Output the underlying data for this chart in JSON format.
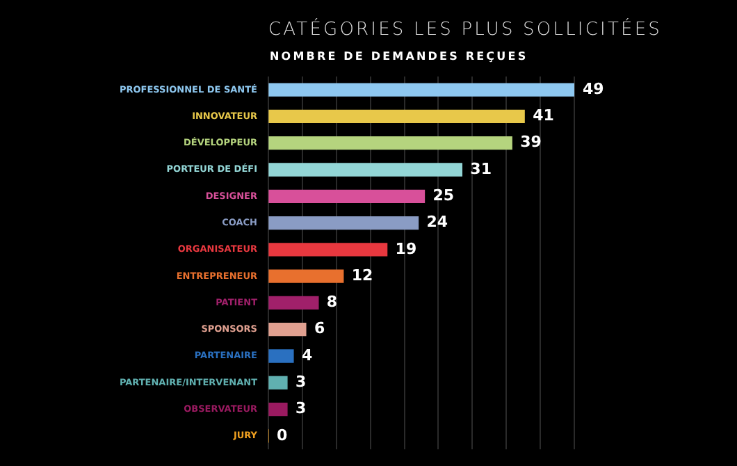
{
  "chart_data": {
    "type": "bar",
    "orientation": "horizontal",
    "title": "CATÉGORIES LES PLUS SOLLICITÉES",
    "subtitle": "NOMBRE DE DEMANDES REÇUES",
    "categories": [
      "PROFESSIONNEL DE SANTÉ",
      "INNOVATEUR",
      "DÉVELOPPEUR",
      "PORTEUR DE DÉFI",
      "DESIGNER",
      "COACH",
      "ORGANISATEUR",
      "ENTREPRENEUR",
      "PATIENT",
      "SPONSORS",
      "PARTENAIRE",
      "PARTENAIRE/INTERVENANT",
      "OBSERVATEUR",
      "JURY"
    ],
    "values": [
      49,
      41,
      39,
      31,
      25,
      24,
      19,
      12,
      8,
      6,
      4,
      3,
      3,
      0
    ],
    "colors": [
      "#8ec8f0",
      "#e8c84a",
      "#b5d47e",
      "#93d6d6",
      "#d8509a",
      "#8a9cc4",
      "#e8383f",
      "#e8702e",
      "#a0206a",
      "#e0a090",
      "#2a70c0",
      "#60b0b0",
      "#9a1a60",
      "#f0a020"
    ],
    "xlim": [
      0,
      49
    ],
    "xticks": [
      {
        "value": 0,
        "label": null
      },
      {
        "value": 5.44,
        "label": null
      },
      {
        "value": 10.89,
        "label": null
      },
      {
        "value": 16.33,
        "label": null
      },
      {
        "value": 21.78,
        "label": null
      },
      {
        "value": 27.22,
        "label": null
      },
      {
        "value": 32.67,
        "label": null
      },
      {
        "value": 38.11,
        "label": null
      },
      {
        "value": 43.56,
        "label": null
      },
      {
        "value": 49,
        "label": null
      }
    ],
    "tick_labels": "y",
    "grid": "x",
    "data_labels": true,
    "legend": false
  }
}
